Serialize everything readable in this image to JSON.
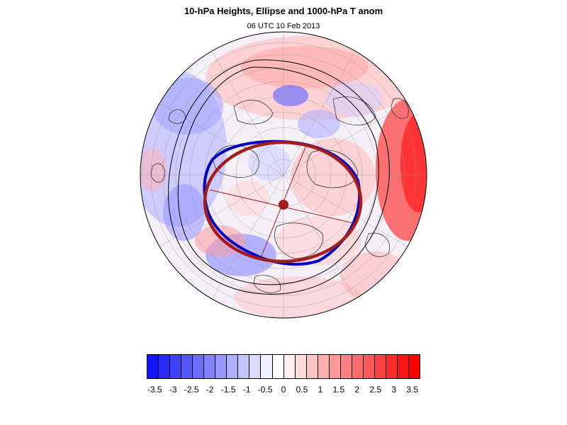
{
  "header": {
    "title": "10-hPa Heights, Ellipse and 1000-hPa T anom",
    "subtitle": "06 UTC 10 Feb 2013"
  },
  "colorbar": {
    "colors": [
      "#1414ff",
      "#2a2aff",
      "#4040ff",
      "#5656ff",
      "#6c6cff",
      "#8282ff",
      "#9898ff",
      "#aeaeff",
      "#c4c4ff",
      "#dadaff",
      "#f0f0ff",
      "#ffffff",
      "#fff0f0",
      "#ffdada",
      "#ffc4c4",
      "#ffaeae",
      "#ff9898",
      "#ff8282",
      "#ff6c6c",
      "#ff5656",
      "#ff4040",
      "#ff2a2a",
      "#ff1414",
      "#ff0000"
    ],
    "labels": [
      "-3.5",
      "-3",
      "-2.5",
      "-2",
      "-1.5",
      "-1",
      "-0.5",
      "0",
      "0.5",
      "1",
      "1.5",
      "2",
      "2.5",
      "3",
      "3.5"
    ]
  },
  "map": {
    "projection": "orthographic-north-polar",
    "ellipse_color": "#a31d1d",
    "contour_color": "#0000c0"
  }
}
